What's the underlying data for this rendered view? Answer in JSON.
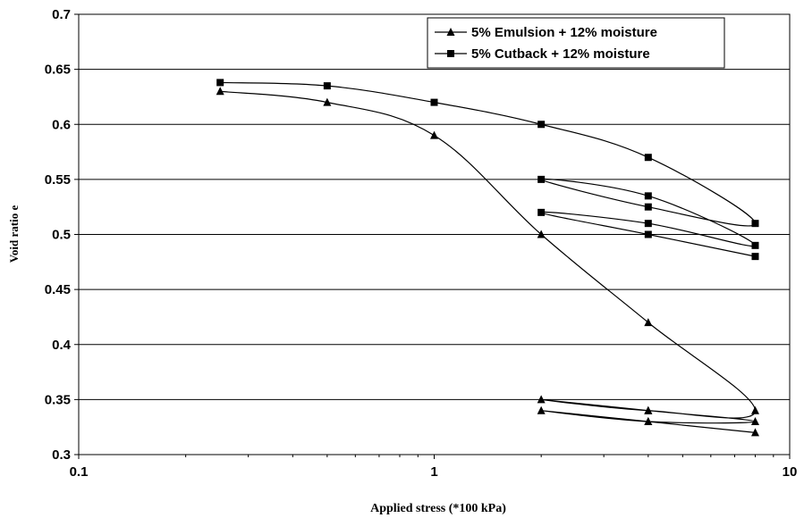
{
  "chart_data": {
    "type": "scatter",
    "title": "",
    "xlabel": "Applied stress (*100  kPa)",
    "ylabel": "Void ratio  e",
    "xscale": "log",
    "xlim": [
      0.1,
      10
    ],
    "ylim": [
      0.3,
      0.7
    ],
    "x_ticks": [
      "0.1",
      "1",
      "10"
    ],
    "y_ticks": [
      "0.3",
      "0.35",
      "0.4",
      "0.45",
      "0.5",
      "0.55",
      "0.6",
      "0.65",
      "0.7"
    ],
    "grid": "horizontal",
    "legend_position": "top-right",
    "series": [
      {
        "name": "5% Emulsion + 12% moisture",
        "marker": "triangle",
        "color": "#000000",
        "points": [
          [
            0.25,
            0.63
          ],
          [
            0.5,
            0.62
          ],
          [
            1,
            0.59
          ],
          [
            2,
            0.5
          ],
          [
            4,
            0.42
          ],
          [
            8,
            0.34
          ],
          [
            4,
            0.34
          ],
          [
            2,
            0.35
          ],
          [
            4,
            0.34
          ],
          [
            8,
            0.33
          ],
          [
            4,
            0.33
          ],
          [
            2,
            0.34
          ],
          [
            4,
            0.33
          ],
          [
            8,
            0.32
          ]
        ]
      },
      {
        "name": "5% Cutback + 12% moisture",
        "marker": "square",
        "color": "#000000",
        "points": [
          [
            0.25,
            0.638
          ],
          [
            0.5,
            0.635
          ],
          [
            1,
            0.62
          ],
          [
            2,
            0.6
          ],
          [
            4,
            0.57
          ],
          [
            8,
            0.51
          ],
          [
            4,
            0.525
          ],
          [
            2,
            0.55
          ],
          [
            4,
            0.535
          ],
          [
            8,
            0.49
          ],
          [
            4,
            0.51
          ],
          [
            2,
            0.52
          ],
          [
            4,
            0.5
          ],
          [
            8,
            0.48
          ]
        ]
      }
    ]
  }
}
